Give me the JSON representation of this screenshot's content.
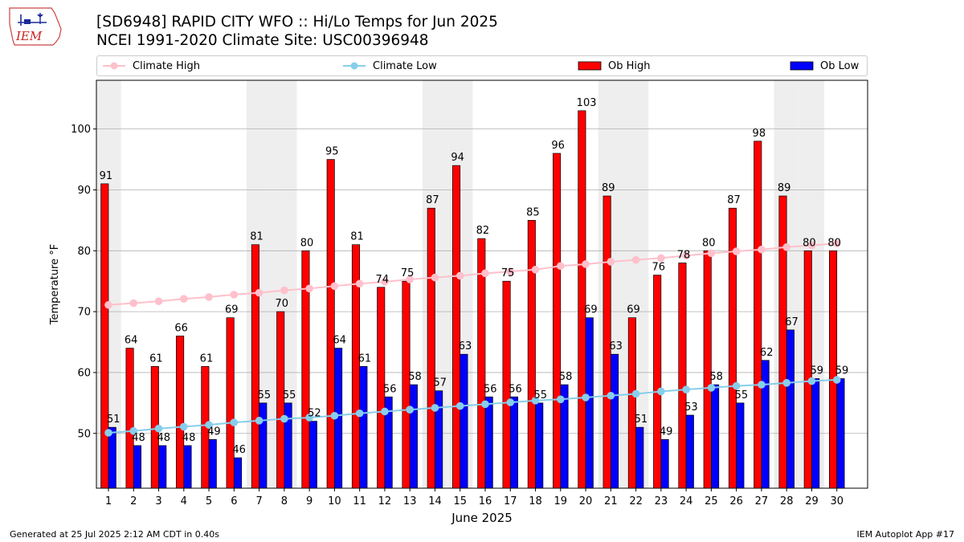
{
  "header": {
    "title_line1": "[SD6948] RAPID CITY WFO :: Hi/Lo Temps for Jun 2025",
    "title_line2": "NCEI 1991-2020 Climate Site: USC00396948",
    "logo_text": "IEM"
  },
  "legend": {
    "climate_high": "Climate High",
    "climate_low": "Climate Low",
    "ob_high": "Ob High",
    "ob_low": "Ob Low"
  },
  "colors": {
    "ob_high": "#ff0000",
    "ob_low": "#0000ff",
    "climate_high": "#ffc0cb",
    "climate_low": "#87ceeb",
    "weekend_shade": "#eeeeee",
    "gridline": "#b0b0b0"
  },
  "chart_data": {
    "type": "bar",
    "xlabel": "June 2025",
    "ylabel": "Temperature °F",
    "ylim": [
      41,
      108
    ],
    "yticks": [
      50,
      60,
      70,
      80,
      90,
      100
    ],
    "grid": "horizontal",
    "legend_position": "top",
    "categories": [
      "1",
      "2",
      "3",
      "4",
      "5",
      "6",
      "7",
      "8",
      "9",
      "10",
      "11",
      "12",
      "13",
      "14",
      "15",
      "16",
      "17",
      "18",
      "19",
      "20",
      "21",
      "22",
      "23",
      "24",
      "25",
      "26",
      "27",
      "28",
      "29",
      "30"
    ],
    "weekend_days": [
      1,
      7,
      8,
      14,
      15,
      21,
      22,
      28,
      29
    ],
    "series": [
      {
        "name": "Ob High",
        "kind": "bar",
        "values": [
          91,
          64,
          61,
          66,
          61,
          69,
          81,
          70,
          80,
          95,
          81,
          74,
          75,
          87,
          94,
          82,
          75,
          85,
          96,
          103,
          89,
          69,
          76,
          78,
          80,
          87,
          98,
          89,
          80,
          80
        ]
      },
      {
        "name": "Ob Low",
        "kind": "bar",
        "values": [
          51,
          48,
          48,
          48,
          49,
          46,
          55,
          55,
          52,
          64,
          61,
          56,
          58,
          57,
          63,
          56,
          56,
          55,
          58,
          69,
          63,
          51,
          49,
          53,
          58,
          55,
          62,
          67,
          59,
          59
        ]
      },
      {
        "name": "Climate High",
        "kind": "line",
        "values": [
          71.1,
          71.4,
          71.7,
          72.1,
          72.4,
          72.8,
          73.1,
          73.5,
          73.8,
          74.2,
          74.6,
          74.9,
          75.3,
          75.6,
          75.9,
          76.3,
          76.6,
          76.9,
          77.5,
          77.8,
          78.2,
          78.5,
          78.8,
          79.2,
          79.6,
          79.9,
          80.2,
          80.6,
          80.9,
          81.2
        ]
      },
      {
        "name": "Climate Low",
        "kind": "line",
        "values": [
          50.1,
          50.4,
          50.8,
          51.1,
          51.4,
          51.8,
          52.1,
          52.4,
          52.6,
          52.9,
          53.3,
          53.6,
          53.9,
          54.2,
          54.5,
          54.8,
          55.1,
          55.4,
          55.6,
          55.9,
          56.2,
          56.5,
          56.9,
          57.2,
          57.5,
          57.8,
          58.0,
          58.3,
          58.6,
          58.8
        ]
      }
    ]
  },
  "footer": {
    "left": "Generated at 25 Jul 2025 2:12 AM CDT in 0.40s",
    "right": "IEM Autoplot App #17"
  }
}
